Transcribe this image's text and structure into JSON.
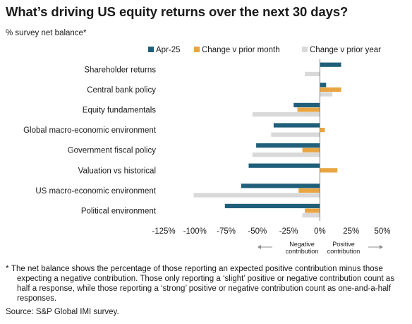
{
  "title": "What’s driving US equity returns over the next 30 days?",
  "subtitle": "% survey net balance*",
  "colors": {
    "apr25": "#1f5f7a",
    "change_month": "#e8a542",
    "change_year": "#d9d9d9",
    "axis": "#7f7f7f",
    "text": "#1a1a1a"
  },
  "chart_data": {
    "type": "bar",
    "orientation": "horizontal",
    "categories": [
      "Shareholder returns",
      "Central bank policy",
      "Equity fundamentals",
      "Global macro-economic environment",
      "Government fiscal policy",
      "Valuation vs historical",
      "US macro-economic environment",
      "Political environment"
    ],
    "series": [
      {
        "name": "Apr-25",
        "color": "#1f5f7a",
        "values": [
          17,
          5,
          -21,
          -37,
          -51,
          -57,
          -63,
          -76
        ]
      },
      {
        "name": "Change v prior month",
        "color": "#e8a542",
        "values": [
          0,
          17,
          -18,
          4,
          -14,
          14,
          -17,
          -12
        ]
      },
      {
        "name": "Change v prior year",
        "color": "#d9d9d9",
        "values": [
          -12,
          10,
          -54,
          -39,
          -54,
          0,
          -101,
          -14
        ]
      }
    ],
    "xlim": [
      -125,
      50
    ],
    "x_ticks": [
      -125,
      -100,
      -75,
      -50,
      -25,
      0,
      25,
      50
    ],
    "x_tick_labels": [
      "-125%",
      "-100%",
      "-75%",
      "-50%",
      "-25%",
      "0%",
      "25%",
      "50%"
    ],
    "legend_position": "top",
    "grid": false,
    "annotations": {
      "negative": "Negative contribution",
      "positive": "Positive contribution"
    }
  },
  "footnote": {
    "marker": "*",
    "text": "The net balance shows the percentage of those reporting an expected positive contribution minus those expecting a negative contribution. Those only reporting a ‘slight’ positive or negative contribution count as half a response, while those reporting a ‘strong’ positive or negative contribution count as one-and-a-half responses."
  },
  "source": "Source: S&P Global IMI survey."
}
